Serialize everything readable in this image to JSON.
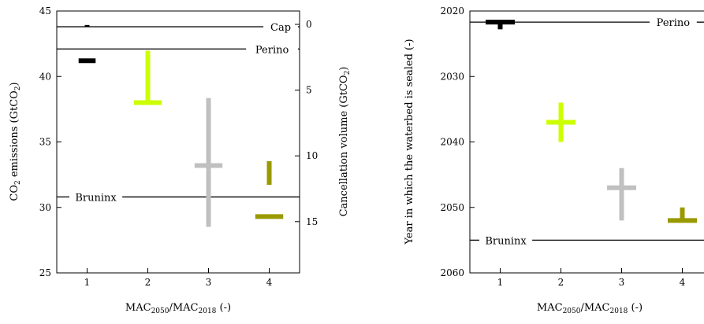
{
  "chart_data": [
    {
      "type": "scatter",
      "x": [
        1,
        2,
        3,
        4
      ],
      "xlabel": "MAC2050/MAC2018 (-)",
      "xlabel_parts": {
        "a": "MAC",
        "a_sub": "2050",
        "sep": "/MAC",
        "b_sub": "2018",
        "tail": " (-)"
      },
      "xticks": [
        "1",
        "2",
        "3",
        "4"
      ],
      "xlim": [
        0.5,
        4.5
      ],
      "ylabel": "CO2 emissions (GtCO2)",
      "ylabel_parts": {
        "a": "CO",
        "a_sub": "2",
        "mid": " emissions (GtCO",
        "b_sub": "2",
        "tail": ")"
      },
      "ylim": [
        25,
        45
      ],
      "yticks": [
        "25",
        "30",
        "35",
        "40",
        "45"
      ],
      "y2label": "Cancellation volume (GtCO2)",
      "y2label_parts": {
        "a": "Cancellation volume (GtCO",
        "a_sub": "2",
        "tail": ")"
      },
      "y2lim": [
        0,
        18.9
      ],
      "y2_inverted": true,
      "y2ticks": [
        "0",
        "5",
        "10",
        "15"
      ],
      "hlines": [
        {
          "label": "Cap",
          "y": 43.8
        },
        {
          "label": "Perino",
          "y": 42.1
        },
        {
          "label": "Bruninx",
          "y": 30.8
        }
      ],
      "series": [
        {
          "color": "#000000",
          "points": [
            {
              "x": 1,
              "emissions": 41.2,
              "cancellation": 0.1
            }
          ]
        },
        {
          "color": "#ccff00",
          "points": [
            {
              "x": 2,
              "emissions": 38.0,
              "cancellation": 3.0
            }
          ]
        },
        {
          "color": "#c0c0c0",
          "points": [
            {
              "x": 3,
              "emissions": 33.2,
              "cancellation": 7.5
            }
          ]
        },
        {
          "color": "#999900",
          "points": [
            {
              "x": 4,
              "emissions": 29.3,
              "cancellation": 12.2
            }
          ]
        }
      ]
    },
    {
      "type": "scatter",
      "x": [
        1,
        2,
        3,
        4
      ],
      "xlabel": "MAC2050/MAC2018 (-)",
      "xlabel_parts": {
        "a": "MAC",
        "a_sub": "2050",
        "sep": "/MAC",
        "b_sub": "2018",
        "tail": " (-)"
      },
      "xticks": [
        "1",
        "2",
        "3",
        "4"
      ],
      "xlim": [
        0.5,
        4.5
      ],
      "ylabel": "Year in which the waterbed is sealed (-)",
      "ylim": [
        2060,
        2020
      ],
      "y_inverted": true,
      "yticks": [
        "2020",
        "2030",
        "2040",
        "2050",
        "2060"
      ],
      "hlines": [
        {
          "label": "Perino",
          "y": 2021.7
        },
        {
          "label": "Bruninx",
          "y": 2055
        }
      ],
      "series": [
        {
          "color": "#000000",
          "points": [
            {
              "x": 1,
              "year": 2021.7,
              "year_range": [
                2021.5,
                2022.8
              ]
            }
          ]
        },
        {
          "color": "#ccff00",
          "points": [
            {
              "x": 2,
              "year": 2037,
              "year_range": [
                2034,
                2040
              ]
            }
          ]
        },
        {
          "color": "#c0c0c0",
          "points": [
            {
              "x": 3,
              "year": 2047,
              "year_range": [
                2044,
                2052
              ]
            }
          ]
        },
        {
          "color": "#999900",
          "points": [
            {
              "x": 4,
              "year": 2052,
              "year_range": [
                2050,
                2052
              ]
            }
          ]
        }
      ]
    }
  ]
}
